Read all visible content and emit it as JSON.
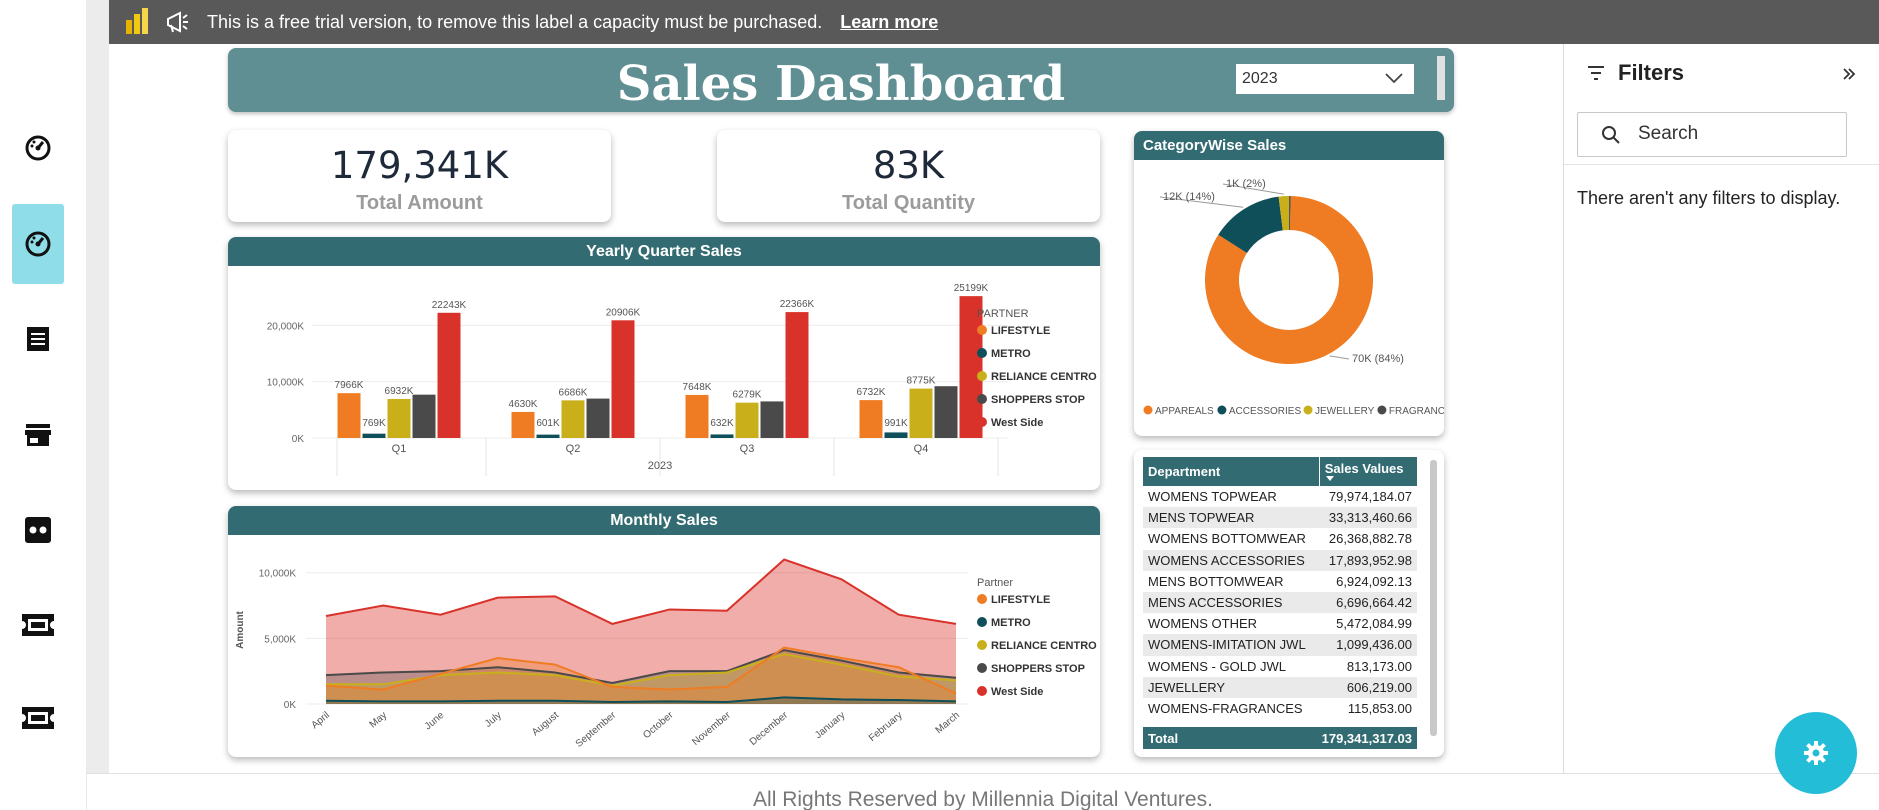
{
  "trial_banner": {
    "text": "This is a free trial version, to remove this label a capacity must be purchased.",
    "link": "Learn more"
  },
  "header": {
    "title": "Sales Dashboard",
    "year_selected": "2023"
  },
  "kpis": [
    {
      "value": "179,341K",
      "label": "Total Amount"
    },
    {
      "value": "83K",
      "label": "Total Quantity"
    }
  ],
  "partners": [
    "LIFESTYLE",
    "METRO",
    "RELIANCE CENTRO",
    "SHOPPERS STOP",
    "West Side"
  ],
  "colors": {
    "LIFESTYLE": "#ef7c22",
    "METRO": "#0f4f5a",
    "RELIANCE CENTRO": "#c9b01a",
    "SHOPPERS STOP": "#4a4a4a",
    "West Side": "#d9322a",
    "header": "#5f8f93",
    "card_head": "#336b72",
    "accent": "#8fdde9",
    "fab": "#24bdd8"
  },
  "quarter_chart": {
    "title": "Yearly Quarter Sales",
    "legend_title": "PARTNER",
    "year_label": "2023",
    "chart_data": {
      "type": "bar",
      "categories": [
        "Q1",
        "Q2",
        "Q3",
        "Q4"
      ],
      "series": [
        {
          "name": "LIFESTYLE",
          "values": [
            7966,
            4630,
            7648,
            6732
          ],
          "labels": [
            "7966K",
            "4630K",
            "7648K",
            "6732K"
          ]
        },
        {
          "name": "METRO",
          "values": [
            769,
            601,
            632,
            991
          ],
          "labels": [
            "769K",
            "601K",
            "632K",
            "991K"
          ]
        },
        {
          "name": "RELIANCE CENTRO",
          "values": [
            6932,
            6686,
            6279,
            8775
          ],
          "labels": [
            "6932K",
            "6686K",
            "6279K",
            "8775K"
          ]
        },
        {
          "name": "SHOPPERS STOP",
          "values": [
            7700,
            7000,
            6500,
            9200
          ],
          "labels": [
            "",
            "",
            "",
            ""
          ]
        },
        {
          "name": "West Side",
          "values": [
            22243,
            20906,
            22366,
            25199
          ],
          "labels": [
            "22243K",
            "20906K",
            "22366K",
            "25199K"
          ]
        }
      ],
      "ylim": [
        0,
        27000
      ],
      "yticks": [
        0,
        10000,
        20000
      ],
      "ytick_labels": [
        "0K",
        "10,000K",
        "20,000K"
      ]
    }
  },
  "monthly_chart": {
    "title": "Monthly Sales",
    "legend_title": "Partner",
    "ylabel": "Amount",
    "chart_data": {
      "type": "area",
      "x": [
        "April",
        "May",
        "June",
        "July",
        "August",
        "September",
        "October",
        "November",
        "December",
        "January",
        "February",
        "March"
      ],
      "series": [
        {
          "name": "LIFESTYLE",
          "values": [
            1400,
            1100,
            2300,
            3500,
            3000,
            1300,
            1100,
            1300,
            4300,
            3500,
            2800,
            800
          ]
        },
        {
          "name": "METRO",
          "values": [
            250,
            200,
            200,
            250,
            250,
            150,
            200,
            150,
            500,
            350,
            300,
            200
          ]
        },
        {
          "name": "RELIANCE CENTRO",
          "values": [
            1500,
            1500,
            2200,
            2400,
            2200,
            1400,
            2200,
            2400,
            3800,
            3000,
            2100,
            1800
          ]
        },
        {
          "name": "SHOPPERS STOP",
          "values": [
            2200,
            2400,
            2500,
            2800,
            2400,
            1600,
            2500,
            2500,
            4100,
            3300,
            2400,
            2000
          ]
        },
        {
          "name": "West Side",
          "values": [
            6700,
            7500,
            6800,
            8100,
            8200,
            6100,
            7200,
            7100,
            11000,
            9500,
            6800,
            6100
          ]
        }
      ],
      "ylim": [
        0,
        11500
      ],
      "yticks": [
        0,
        5000,
        10000
      ],
      "ytick_labels": [
        "0K",
        "5,000K",
        "10,000K"
      ]
    }
  },
  "category_chart": {
    "title": "CategoryWise Sales",
    "chart_data": {
      "type": "pie",
      "categories": [
        "APPAREALS",
        "ACCESSORIES",
        "JEWELLERY",
        "FRAGRANC..."
      ],
      "values": [
        84,
        14,
        2,
        0.3
      ],
      "labels": [
        "70K (84%)",
        "12K (14%)",
        "1K (2%)",
        ""
      ],
      "colors": [
        "#ef7c22",
        "#0f4f5a",
        "#c9b01a",
        "#4a4a4a"
      ]
    }
  },
  "dept_table": {
    "headers": [
      "Department",
      "Sales Values"
    ],
    "rows": [
      [
        "WOMENS TOPWEAR",
        "79,974,184.07"
      ],
      [
        "MENS TOPWEAR",
        "33,313,460.66"
      ],
      [
        "WOMENS BOTTOMWEAR",
        "26,368,882.78"
      ],
      [
        "WOMENS ACCESSORIES",
        "17,893,952.98"
      ],
      [
        "MENS BOTTOMWEAR",
        "6,924,092.13"
      ],
      [
        "MENS ACCESSORIES",
        "6,696,664.42"
      ],
      [
        "WOMENS OTHER",
        "5,472,084.99"
      ],
      [
        "WOMENS-IMITATION JWL",
        "1,099,436.00"
      ],
      [
        "WOMENS - GOLD JWL",
        "813,173.00"
      ],
      [
        "JEWELLERY",
        "606,219.00"
      ],
      [
        "WOMENS-FRAGRANCES",
        "115,853.00"
      ]
    ],
    "total_label": "Total",
    "total_value": "179,341,317.03"
  },
  "filters": {
    "title": "Filters",
    "search_placeholder": "Search",
    "empty_text": "There aren't any filters to display."
  },
  "footer": {
    "text": "All Rights Reserved by Millennia Digital Ventures."
  },
  "rail_icons": [
    "dashboard-icon",
    "dashboard-icon",
    "receipt-icon",
    "store-icon",
    "dots-icon",
    "ticket-icon",
    "ticket-icon"
  ]
}
